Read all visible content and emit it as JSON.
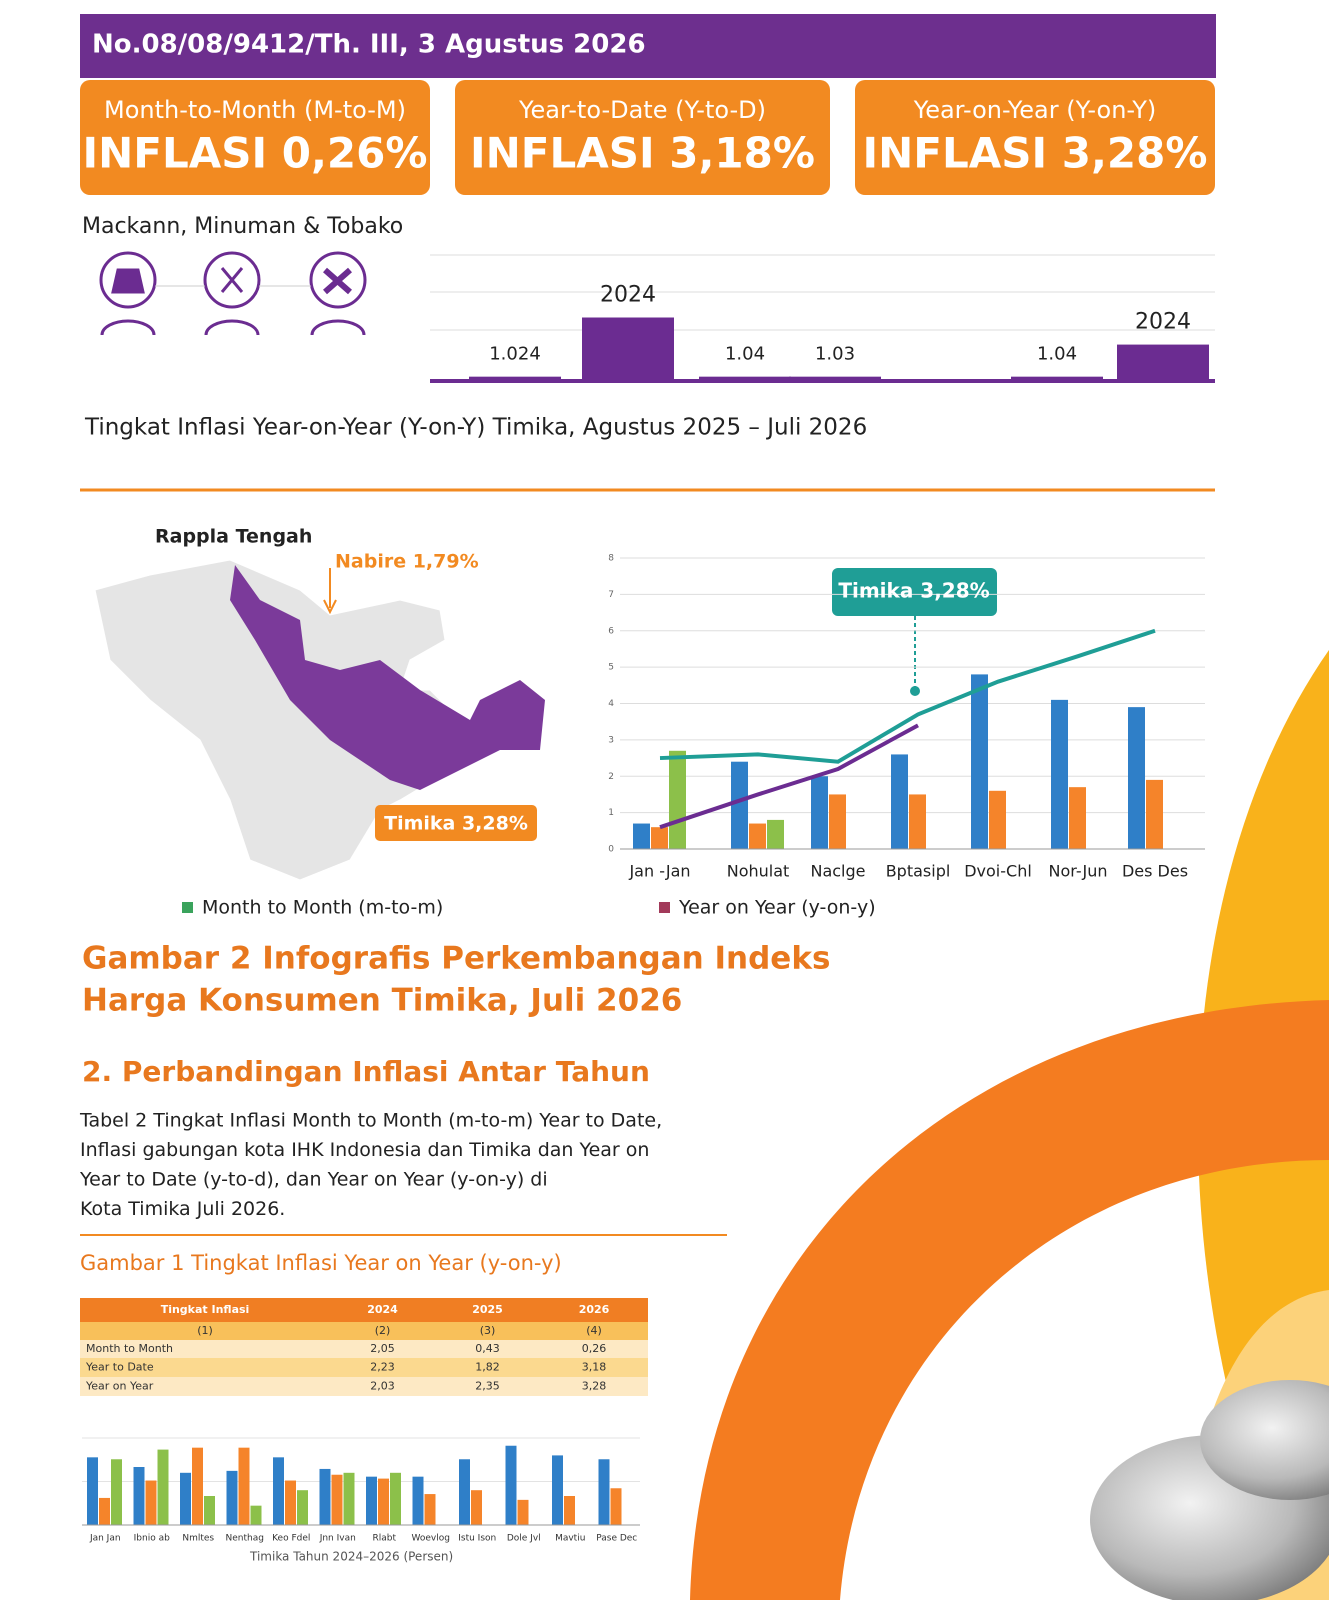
{
  "header": {
    "text": "No.08/08/9412/Th. III, 3 Agustus 2026"
  },
  "cards": [
    {
      "label": "Month-to-Month (M-to-M)",
      "value": "INFLASI 0,26%"
    },
    {
      "label": "Year-to-Date (Y-to-D)",
      "value": "INFLASI 3,18%"
    },
    {
      "label": "Year-on-Year (Y-on-Y)",
      "value": "INFLASI 3,28%"
    }
  ],
  "section1": {
    "title": "Mackann, Minuman & Tobako",
    "chart": {
      "ylim": [
        0,
        3
      ],
      "color": "#6b2c91",
      "bars": [
        {
          "label": "1.024",
          "value": 0.08
        },
        {
          "label": "2024",
          "value": 1.5
        },
        {
          "label": "1.04",
          "value": 0.08
        },
        {
          "label": "1.03",
          "value": 0.08
        },
        {
          "label": "1.04",
          "value": 0.08
        },
        {
          "label": "2024",
          "value": 0.85
        }
      ]
    },
    "caption": "Tingkat Inflasi Year-on-Year (Y-on-Y) Timika, Agustus 2025 – Juli 2026"
  },
  "map": {
    "title": "Rappla Tengah",
    "labels": [
      "Nabire 1,79%",
      "Timika 3,28%"
    ]
  },
  "chart": {
    "type": "bar",
    "categories": [
      "Jan -Jan",
      "Nohulat",
      "Naclge",
      "Bptasipl",
      "Dvoi-Chl",
      "Nor-Jun",
      "Des Des"
    ],
    "ylim": [
      0,
      8
    ],
    "yticks": [
      0,
      1,
      2,
      3,
      4,
      5,
      6,
      7,
      8
    ],
    "series": [
      {
        "color": "#2f7fc8",
        "values": [
          0.7,
          2.4,
          2.0,
          2.6,
          4.8,
          4.1,
          3.9
        ]
      },
      {
        "color": "#f5842a",
        "values": [
          0.6,
          0.7,
          1.5,
          1.5,
          1.6,
          1.7,
          1.9
        ]
      },
      {
        "color": "#8cc04a",
        "values": [
          2.7,
          0.8,
          null,
          null,
          null,
          null,
          null
        ]
      }
    ],
    "lines": [
      {
        "color": "#1f9e96",
        "values": [
          2.5,
          2.6,
          2.4,
          3.7,
          4.6,
          5.3,
          6.0
        ]
      },
      {
        "color": "#6b2c91",
        "values": [
          0.6,
          1.5,
          2.2,
          3.4,
          null,
          null,
          null
        ]
      }
    ],
    "annotation": "Timika 3,28%",
    "legend": [
      {
        "name": "Month to Month (m-to-m)",
        "color": "#3aa35c"
      },
      {
        "name": "Year on Year (y-on-y)",
        "color": "#a23a5a"
      }
    ]
  },
  "figure_title": [
    "Gambar 2 Infografis Perkembangan Indeks",
    "Harga Konsumen Timika, Juli 2026"
  ],
  "section2": {
    "heading": "2. Perbandingan Inflasi Antar Tahun",
    "paragraph": [
      "Tabel 2 Tingkat Inflasi Month to Month (m-to-m) Year to Date,",
      "Inflasi gabungan kota IHK Indonesia dan Timika dan Year on",
      "Year to Date (y-to-d), dan Year on Year (y-on-y) di",
      "Kota Timika Juli 2026."
    ],
    "figure_caption": "Gambar 1  Tingkat Inflasi Year on Year (y-on-y)"
  },
  "table": {
    "header": [
      "Tingkat Inflasi",
      "2024",
      "2025",
      "2026"
    ],
    "rows": [
      [
        "(1)",
        "(2)",
        "(3)",
        "(4)"
      ],
      [
        "Month to Month",
        "2,05",
        "0,43",
        "0,26"
      ],
      [
        "Year to Date",
        "2,23",
        "1,82",
        "3,18"
      ],
      [
        "Year on Year",
        "2,03",
        "2,35",
        "3,28"
      ]
    ]
  },
  "bottom_chart": {
    "categories": [
      "Jan Jan",
      "Ibnio ab",
      "Nmltes",
      "Nenthag",
      "Keo Fdel",
      "Jnn Ivan",
      "Rlabt",
      "Woevlog",
      "Istu Ison",
      "Dole Jvl",
      "Mavtiu",
      "Pase Dec"
    ],
    "ylim": [
      0,
      4.5
    ],
    "series": [
      {
        "color": "#2f7fc8",
        "values": [
          3.5,
          3.0,
          2.7,
          2.8,
          3.5,
          2.9,
          2.5,
          2.5,
          3.4,
          4.1,
          3.6,
          3.4
        ]
      },
      {
        "color": "#f5842a",
        "values": [
          1.4,
          2.3,
          4.0,
          4.0,
          2.3,
          2.6,
          2.4,
          1.6,
          1.8,
          1.3,
          1.5,
          1.9
        ]
      },
      {
        "color": "#8cc04a",
        "values": [
          3.4,
          3.9,
          1.5,
          1.0,
          1.8,
          2.7,
          2.7,
          null,
          null,
          null,
          null,
          null
        ]
      }
    ],
    "caption": "Timika Tahun 2024–2026 (Persen)"
  }
}
